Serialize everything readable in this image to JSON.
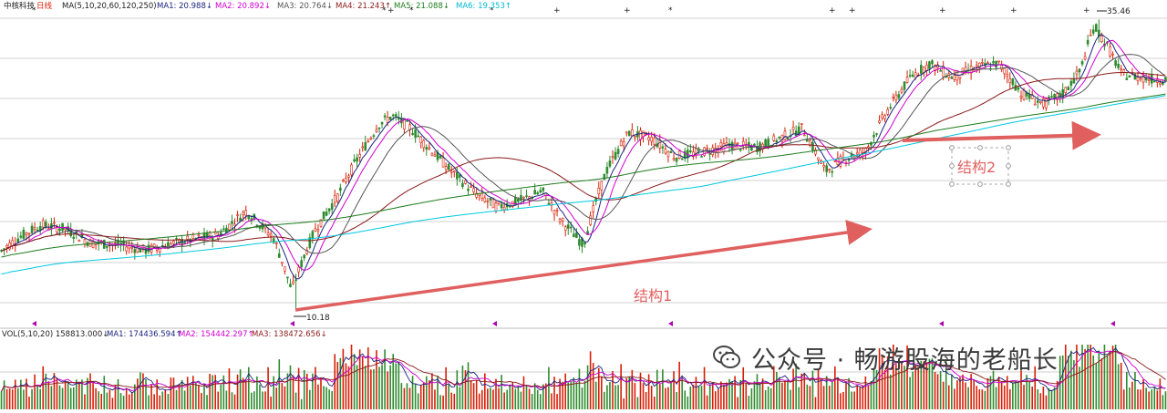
{
  "header": {
    "stock_name": "中核科技",
    "period": "日线",
    "ma_label": "MA(5,10,20,60,120,250)",
    "ma1": "MA1: 20.988↓",
    "ma2": "MA2: 20.892↓",
    "ma3": "MA3: 20.764↓",
    "ma4": "MA4: 21.243↑",
    "ma5": "MA5: 21.088↓",
    "ma6": "MA6: 19.353↑"
  },
  "volume_header": {
    "label": "VOL(5,10,20) 158813.000↓",
    "ma1": "MA1: 174436.594↑",
    "ma2": "MA2: 154442.297↑",
    "ma3": "MA3: 138472.656↓"
  },
  "annotations": {
    "low_price": "10.18",
    "high_price": "35.46",
    "structure1": "结构1",
    "structure2": "结构2"
  },
  "watermark": {
    "text": "公众号 · 畅游股海的老船长",
    "icon": "wechat-icon"
  },
  "colors": {
    "up": "#d81e06",
    "down": "#2e8b2e",
    "ma1": "#1a237e",
    "ma2": "#d000d0",
    "ma3": "#555555",
    "ma4": "#8b1a1a",
    "ma5": "#1e7b1e",
    "ma6": "#00c8e0",
    "arrow": "#e06060",
    "grid": "#d0d0d0"
  },
  "chart_data": {
    "type": "candlestick",
    "title": "中核科技 日线",
    "y_range_estimate": [
      9.5,
      36.5
    ],
    "y_scale": "log",
    "grid": true,
    "key_points": [
      {
        "label": "10.18",
        "type": "low",
        "value": 10.18
      },
      {
        "label": "35.46",
        "type": "high",
        "value": 35.46
      }
    ],
    "price_path_anchors": [
      [
        0,
        13.0
      ],
      [
        20,
        13.8
      ],
      [
        45,
        14.6
      ],
      [
        70,
        14.4
      ],
      [
        100,
        13.5
      ],
      [
        130,
        13.4
      ],
      [
        160,
        13.1
      ],
      [
        200,
        13.6
      ],
      [
        240,
        14.0
      ],
      [
        270,
        15.5
      ],
      [
        300,
        13.8
      ],
      [
        320,
        11.0
      ],
      [
        345,
        14.2
      ],
      [
        370,
        16.5
      ],
      [
        395,
        19.8
      ],
      [
        415,
        22.5
      ],
      [
        430,
        23.4
      ],
      [
        450,
        22.2
      ],
      [
        470,
        20.4
      ],
      [
        495,
        18.4
      ],
      [
        520,
        16.8
      ],
      [
        545,
        15.8
      ],
      [
        570,
        16.2
      ],
      [
        595,
        16.9
      ],
      [
        615,
        14.9
      ],
      [
        640,
        13.4
      ],
      [
        665,
        18.4
      ],
      [
        690,
        21.8
      ],
      [
        715,
        21.2
      ],
      [
        740,
        19.6
      ],
      [
        770,
        20.0
      ],
      [
        800,
        20.6
      ],
      [
        830,
        20.4
      ],
      [
        855,
        21.2
      ],
      [
        880,
        22.2
      ],
      [
        905,
        18.4
      ],
      [
        925,
        19.4
      ],
      [
        950,
        20.1
      ],
      [
        970,
        23.4
      ],
      [
        1000,
        27.8
      ],
      [
        1020,
        29.3
      ],
      [
        1045,
        27.6
      ],
      [
        1070,
        28.8
      ],
      [
        1095,
        29.3
      ],
      [
        1120,
        25.8
      ],
      [
        1145,
        24.6
      ],
      [
        1165,
        25.6
      ],
      [
        1185,
        28.4
      ],
      [
        1200,
        34.5
      ],
      [
        1215,
        31.5
      ],
      [
        1230,
        28.0
      ],
      [
        1265,
        27.4
      ]
    ],
    "ma_series": [
      "MA1",
      "MA2",
      "MA3",
      "MA4",
      "MA5",
      "MA6"
    ],
    "volume": {
      "ma_series": [
        "MA1",
        "MA2",
        "MA3"
      ]
    }
  }
}
